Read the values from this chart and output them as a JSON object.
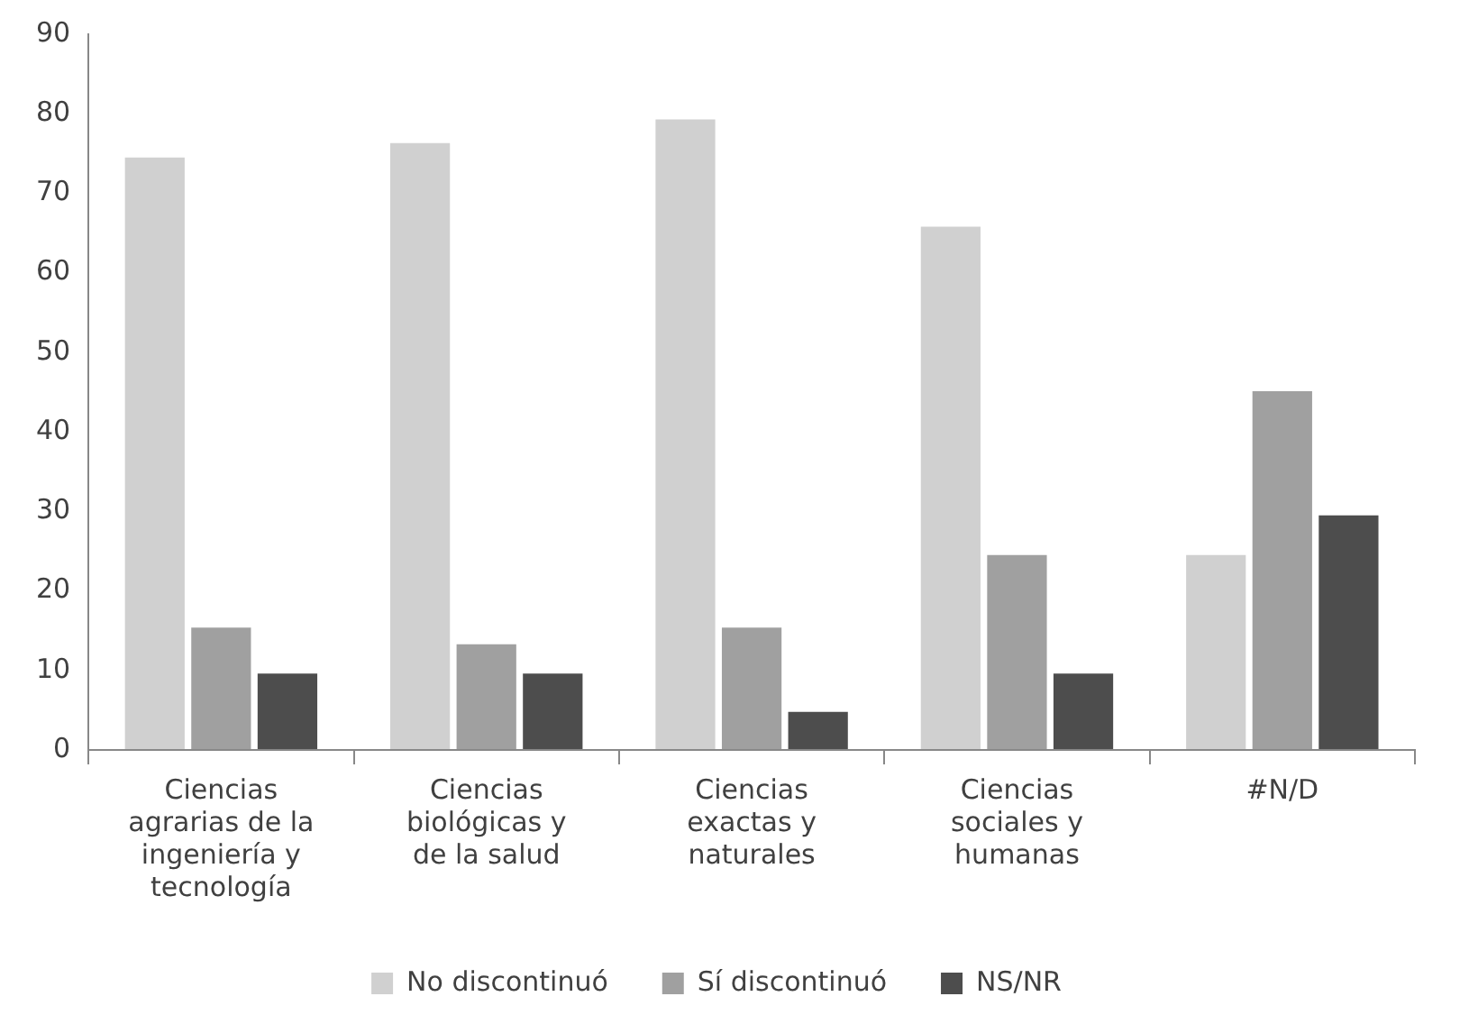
{
  "chart_data": {
    "type": "bar",
    "categories": [
      "Ciencias agrarias de la ingeniería y tecnología",
      "Ciencias biológicas y de la salud",
      "Ciencias exactas y naturales",
      "Ciencias sociales y humanas",
      "#N/D"
    ],
    "series": [
      {
        "name": "No discontinuó",
        "color": "#d0d0d0",
        "values": [
          74.5,
          76.3,
          79.3,
          65.8,
          24.5
        ]
      },
      {
        "name": "Sí discontinuó",
        "color": "#a0a0a0",
        "values": [
          15.4,
          13.3,
          15.4,
          24.5,
          45.1
        ]
      },
      {
        "name": "NS/NR",
        "color": "#4d4d4d",
        "values": [
          9.6,
          9.6,
          4.8,
          9.6,
          29.5
        ]
      }
    ],
    "ylim": [
      0,
      90
    ],
    "yticks": [
      0,
      10,
      20,
      30,
      40,
      50,
      60,
      70,
      80,
      90
    ],
    "grid": false,
    "legend": "bottom"
  }
}
